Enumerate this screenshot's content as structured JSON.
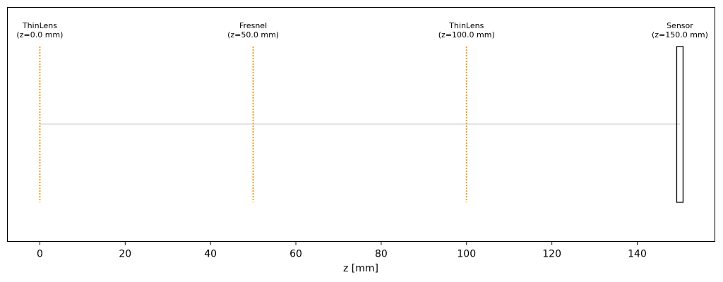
{
  "chart_data": {
    "type": "layout",
    "categories": [
      "ThinLens",
      "Fresnel",
      "ThinLens",
      "Sensor"
    ],
    "values": [
      0,
      50,
      100,
      150
    ],
    "value_labels": [
      "(z=0.0 mm)",
      "(z=50.0 mm)",
      "(z=100.0 mm)",
      "(z=150.0 mm)"
    ],
    "xlabel": "z [mm]",
    "xlim": [
      -7.6,
      158.2
    ],
    "xticks": [
      0,
      20,
      40,
      60,
      80,
      100,
      120,
      140
    ],
    "color": "#f0a020"
  }
}
